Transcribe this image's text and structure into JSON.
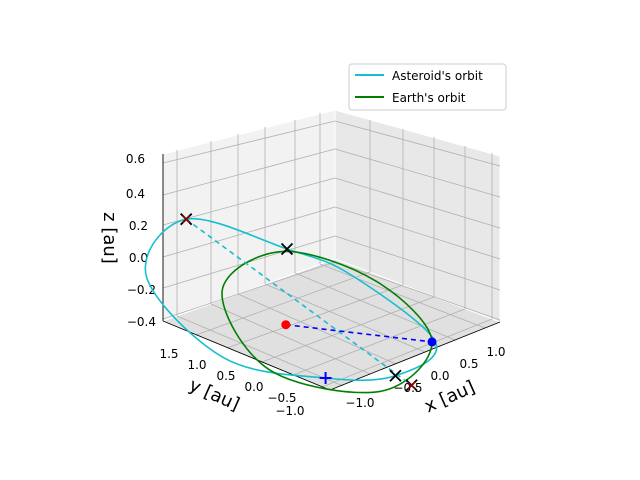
{
  "chart_data": {
    "type": "3d-line",
    "title": "",
    "axes": {
      "x": {
        "label": "x [au]",
        "ticks": [
          "−1.0",
          "−0.5",
          "0.0",
          "0.5",
          "1.0"
        ],
        "range": [
          -1.25,
          1.25
        ]
      },
      "y": {
        "label": "y [au]",
        "ticks": [
          "−1.0",
          "−0.5",
          "0.0",
          "0.5",
          "1.0",
          "1.5"
        ],
        "range": [
          -1.1,
          1.75
        ]
      },
      "z": {
        "label": "z [au]",
        "ticks": [
          "−0.4",
          "−0.2",
          "0.0",
          "0.2",
          "0.4",
          "0.6"
        ],
        "range": [
          -0.42,
          0.66
        ]
      }
    },
    "grid": true,
    "legend": {
      "placement": "top-right",
      "entries": [
        {
          "label": "Asteroid's orbit",
          "color": "#17becf"
        },
        {
          "label": "Earth's orbit",
          "color": "#008000"
        }
      ]
    },
    "series": [
      {
        "name": "Asteroid's orbit",
        "kind": "curve",
        "color": "#17becf",
        "points": [
          [
            -0.74,
            1.1,
            0.58
          ],
          [
            -0.22,
            0.33,
            0.45
          ],
          [
            0.1,
            -0.15,
            0.33
          ],
          [
            0.55,
            -0.8,
            -0.05
          ],
          [
            0.4,
            -0.45,
            -0.3
          ],
          [
            0.06,
            0.1,
            -0.36
          ],
          [
            -0.5,
            0.85,
            -0.28
          ],
          [
            -0.95,
            1.4,
            0.2
          ],
          [
            -0.74,
            1.1,
            0.58
          ]
        ]
      },
      {
        "name": "Earth's orbit",
        "kind": "curve",
        "color": "#008000",
        "points": [
          [
            0.5,
            -0.8,
            -0.04
          ],
          [
            0.3,
            -0.35,
            -0.4
          ],
          [
            -0.2,
            0.55,
            -0.35
          ],
          [
            -0.4,
            0.95,
            0.1
          ],
          [
            -0.15,
            0.45,
            0.4
          ],
          [
            0.3,
            -0.3,
            0.28
          ],
          [
            0.5,
            -0.8,
            -0.04
          ]
        ]
      },
      {
        "name": "",
        "kind": "dashed",
        "color": "#17becf",
        "points": [
          [
            -0.74,
            1.1,
            0.58
          ],
          [
            0.7,
            -0.4,
            -0.42
          ]
        ]
      },
      {
        "name": "",
        "kind": "dashed",
        "color": "#0000ff",
        "points": [
          [
            -0.3,
            0.28,
            0.0
          ],
          [
            0.5,
            -0.8,
            -0.04
          ]
        ]
      }
    ],
    "markers": [
      {
        "name": "asteroid-position",
        "symbol": "dot",
        "color": "#ff0000",
        "point": [
          -0.3,
          0.28,
          0.0
        ]
      },
      {
        "name": "earth-position",
        "symbol": "dot",
        "color": "#0000ff",
        "point": [
          0.5,
          -0.8,
          -0.04
        ]
      },
      {
        "name": "node-top",
        "symbol": "x",
        "color": "#000000",
        "point": [
          -0.74,
          1.1,
          0.58
        ]
      },
      {
        "name": "node-top-inner",
        "symbol": "x",
        "color": "#8b0000",
        "point": [
          -0.74,
          1.1,
          0.58
        ]
      },
      {
        "name": "crossing-upper",
        "symbol": "x",
        "color": "#000000",
        "point": [
          -0.22,
          0.33,
          0.45
        ]
      },
      {
        "name": "crossing-lower",
        "symbol": "x",
        "color": "#000000",
        "point": [
          0.4,
          -0.45,
          -0.3
        ]
      },
      {
        "name": "node-bottom",
        "symbol": "x",
        "color": "#000000",
        "point": [
          0.7,
          -0.4,
          -0.42
        ]
      },
      {
        "name": "node-bottom-inner",
        "symbol": "x",
        "color": "#8b0000",
        "point": [
          0.7,
          -0.4,
          -0.42
        ]
      },
      {
        "name": "sun-plus",
        "symbol": "plus",
        "color": "#0000ff",
        "point": [
          0.06,
          0.1,
          -0.36
        ]
      }
    ]
  }
}
